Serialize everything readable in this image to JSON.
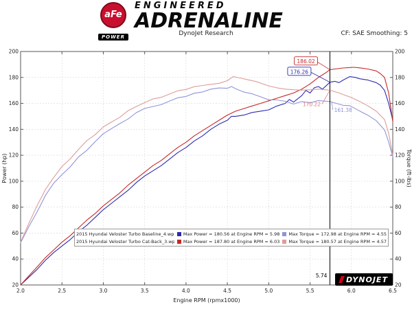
{
  "header": {
    "logo": {
      "circle_text": "aFe",
      "banner_text": "POWER"
    },
    "brand_top": "ENGINEERED",
    "brand_bottom": "ADRENALINE",
    "subtitle": "DynoJet Research",
    "smoothing": "CF: SAE Smoothing: 5"
  },
  "chart_data": {
    "type": "line",
    "xlabel": "Engine RPM (rpmx1000)",
    "ylabel_left": "Power (hp)",
    "ylabel_right": "Torque (ft-lbs)",
    "xlim": [
      2.0,
      6.5
    ],
    "ylim": [
      20,
      200
    ],
    "x_ticks": [
      2.0,
      2.5,
      3.0,
      3.5,
      4.0,
      4.5,
      5.0,
      5.5,
      6.0,
      6.5
    ],
    "y_ticks": [
      20,
      40,
      60,
      80,
      100,
      120,
      140,
      160,
      180,
      200
    ],
    "grid": true,
    "legend_position": "bottom-center",
    "cursor": {
      "x": 5.74,
      "label": "5.74"
    },
    "series": [
      {
        "name": "2015 Hyundai Veloster Turbo Baseline_4.wp8 Power (hp)",
        "color": "#2a2ab0",
        "max_label": "Max Power = 180.56 at Engine RPM = 5.98",
        "points": [
          [
            2.0,
            20
          ],
          [
            2.1,
            26
          ],
          [
            2.2,
            32
          ],
          [
            2.3,
            39
          ],
          [
            2.4,
            45
          ],
          [
            2.5,
            50
          ],
          [
            2.6,
            55
          ],
          [
            2.7,
            61
          ],
          [
            2.8,
            66
          ],
          [
            2.9,
            72
          ],
          [
            3.0,
            78
          ],
          [
            3.1,
            83
          ],
          [
            3.2,
            88
          ],
          [
            3.3,
            93
          ],
          [
            3.4,
            99
          ],
          [
            3.5,
            104
          ],
          [
            3.6,
            108
          ],
          [
            3.7,
            112
          ],
          [
            3.8,
            117
          ],
          [
            3.9,
            122
          ],
          [
            4.0,
            126
          ],
          [
            4.1,
            131
          ],
          [
            4.2,
            135
          ],
          [
            4.3,
            140
          ],
          [
            4.4,
            144
          ],
          [
            4.5,
            147
          ],
          [
            4.55,
            150
          ],
          [
            4.6,
            150
          ],
          [
            4.7,
            151
          ],
          [
            4.8,
            153
          ],
          [
            4.9,
            154
          ],
          [
            5.0,
            155
          ],
          [
            5.1,
            158
          ],
          [
            5.2,
            160
          ],
          [
            5.25,
            163
          ],
          [
            5.3,
            161
          ],
          [
            5.4,
            166
          ],
          [
            5.45,
            170
          ],
          [
            5.5,
            168
          ],
          [
            5.55,
            172
          ],
          [
            5.6,
            173
          ],
          [
            5.65,
            171
          ],
          [
            5.74,
            176.3
          ],
          [
            5.8,
            177
          ],
          [
            5.85,
            176
          ],
          [
            5.9,
            178
          ],
          [
            5.98,
            180.6
          ],
          [
            6.05,
            180
          ],
          [
            6.1,
            179
          ],
          [
            6.2,
            178
          ],
          [
            6.3,
            176
          ],
          [
            6.35,
            174
          ],
          [
            6.4,
            170
          ],
          [
            6.45,
            160
          ],
          [
            6.5,
            147
          ]
        ]
      },
      {
        "name": "2015 Hyundai Veloster Turbo Cat-Back_3.wp8 Power (hp)",
        "color": "#c42827",
        "max_label": "Max Power = 187.80 at Engine RPM = 6.03",
        "points": [
          [
            2.0,
            20
          ],
          [
            2.1,
            27
          ],
          [
            2.2,
            34
          ],
          [
            2.3,
            41
          ],
          [
            2.4,
            47
          ],
          [
            2.5,
            53
          ],
          [
            2.6,
            58
          ],
          [
            2.7,
            64
          ],
          [
            2.8,
            70
          ],
          [
            2.9,
            75
          ],
          [
            3.0,
            81
          ],
          [
            3.1,
            86
          ],
          [
            3.2,
            91
          ],
          [
            3.3,
            97
          ],
          [
            3.4,
            102
          ],
          [
            3.5,
            107
          ],
          [
            3.6,
            112
          ],
          [
            3.7,
            116
          ],
          [
            3.8,
            121
          ],
          [
            3.9,
            126
          ],
          [
            4.0,
            130
          ],
          [
            4.1,
            135
          ],
          [
            4.2,
            139
          ],
          [
            4.3,
            143
          ],
          [
            4.4,
            147
          ],
          [
            4.5,
            151
          ],
          [
            4.6,
            154
          ],
          [
            4.7,
            156
          ],
          [
            4.8,
            158
          ],
          [
            4.9,
            160
          ],
          [
            5.0,
            162
          ],
          [
            5.1,
            164
          ],
          [
            5.2,
            166
          ],
          [
            5.3,
            168
          ],
          [
            5.4,
            171
          ],
          [
            5.5,
            175
          ],
          [
            5.6,
            180
          ],
          [
            5.65,
            182
          ],
          [
            5.7,
            184
          ],
          [
            5.74,
            186
          ],
          [
            5.8,
            186.5
          ],
          [
            5.9,
            187.3
          ],
          [
            6.03,
            187.8
          ],
          [
            6.1,
            187.4
          ],
          [
            6.2,
            186.5
          ],
          [
            6.3,
            185
          ],
          [
            6.35,
            183
          ],
          [
            6.4,
            180
          ],
          [
            6.45,
            168
          ],
          [
            6.5,
            146
          ]
        ]
      },
      {
        "name": "2015 Hyundai Veloster Turbo Baseline_4.wp8 Torque (ft-lbs)",
        "color": "#8f93d8",
        "max_label": "Max Torque = 172.98 at Engine RPM = 4.55",
        "points": [
          [
            2.0,
            52.5
          ],
          [
            2.1,
            65
          ],
          [
            2.2,
            76.4
          ],
          [
            2.3,
            89
          ],
          [
            2.4,
            98.5
          ],
          [
            2.5,
            105
          ],
          [
            2.6,
            111.1
          ],
          [
            2.7,
            118.7
          ],
          [
            2.8,
            123.8
          ],
          [
            2.9,
            130.4
          ],
          [
            3.0,
            136.6
          ],
          [
            3.1,
            140.6
          ],
          [
            3.2,
            144.4
          ],
          [
            3.3,
            148
          ],
          [
            3.4,
            152.9
          ],
          [
            3.5,
            156.1
          ],
          [
            3.6,
            157.6
          ],
          [
            3.7,
            159
          ],
          [
            3.8,
            161.7
          ],
          [
            3.9,
            164.3
          ],
          [
            4.0,
            165.4
          ],
          [
            4.1,
            167.8
          ],
          [
            4.2,
            168.8
          ],
          [
            4.3,
            171
          ],
          [
            4.4,
            171.9
          ],
          [
            4.5,
            171.6
          ],
          [
            4.55,
            173
          ],
          [
            4.6,
            171.3
          ],
          [
            4.7,
            168.7
          ],
          [
            4.8,
            167.4
          ],
          [
            4.9,
            165.1
          ],
          [
            5.0,
            162.8
          ],
          [
            5.1,
            162.7
          ],
          [
            5.2,
            161.6
          ],
          [
            5.3,
            159.5
          ],
          [
            5.4,
            161.4
          ],
          [
            5.5,
            160.4
          ],
          [
            5.6,
            162.2
          ],
          [
            5.74,
            161.4
          ],
          [
            5.9,
            158.5
          ],
          [
            5.98,
            158.3
          ],
          [
            6.1,
            154.1
          ],
          [
            6.2,
            150.8
          ],
          [
            6.3,
            146.7
          ],
          [
            6.4,
            139.5
          ],
          [
            6.45,
            130.3
          ],
          [
            6.5,
            118.7
          ]
        ]
      },
      {
        "name": "2015 Hyundai Veloster Turbo Cat-Back_3.wp8 Torque (ft-lbs)",
        "color": "#de9b9b",
        "max_label": "Max Torque = 180.57 at Engine RPM = 4.57",
        "points": [
          [
            2.0,
            53
          ],
          [
            2.1,
            67.5
          ],
          [
            2.2,
            81.2
          ],
          [
            2.3,
            93.6
          ],
          [
            2.4,
            102.9
          ],
          [
            2.5,
            111.3
          ],
          [
            2.6,
            117.2
          ],
          [
            2.7,
            124.5
          ],
          [
            2.8,
            131.3
          ],
          [
            2.9,
            135.8
          ],
          [
            3.0,
            141.8
          ],
          [
            3.1,
            145.7
          ],
          [
            3.2,
            149.3
          ],
          [
            3.3,
            154.4
          ],
          [
            3.4,
            157.6
          ],
          [
            3.5,
            160.6
          ],
          [
            3.6,
            163.4
          ],
          [
            3.7,
            164.7
          ],
          [
            3.8,
            167.2
          ],
          [
            3.9,
            169.7
          ],
          [
            4.0,
            170.7
          ],
          [
            4.1,
            172.9
          ],
          [
            4.2,
            173.8
          ],
          [
            4.3,
            174.7
          ],
          [
            4.4,
            175.5
          ],
          [
            4.5,
            177.5
          ],
          [
            4.57,
            180.6
          ],
          [
            4.65,
            179.6
          ],
          [
            4.75,
            178.2
          ],
          [
            4.85,
            176.8
          ],
          [
            5.0,
            173.5
          ],
          [
            5.1,
            172
          ],
          [
            5.2,
            171
          ],
          [
            5.3,
            170.5
          ],
          [
            5.4,
            170.2
          ],
          [
            5.5,
            170.5
          ],
          [
            5.6,
            171
          ],
          [
            5.74,
            170.2
          ],
          [
            5.85,
            168
          ],
          [
            6.0,
            164.5
          ],
          [
            6.1,
            161.5
          ],
          [
            6.2,
            158
          ],
          [
            6.3,
            154
          ],
          [
            6.4,
            147.5
          ],
          [
            6.45,
            137
          ],
          [
            6.5,
            120
          ]
        ]
      }
    ],
    "annotations": [
      {
        "text": "186.02",
        "color": "#c42827",
        "box": true,
        "label_x": 5.45,
        "label_y": 192.5,
        "target_x": 5.74,
        "target_y": 186.0
      },
      {
        "text": "176.26",
        "color": "#2a2ab0",
        "box": true,
        "label_x": 5.37,
        "label_y": 184.5,
        "target_x": 5.74,
        "target_y": 176.3
      },
      {
        "text": "170.22",
        "color": "#d97e7e",
        "box": false,
        "label_x": 5.52,
        "label_y": 159.5,
        "target_x": 5.74,
        "target_y": 170.2
      },
      {
        "text": "161.38",
        "color": "#8f93d8",
        "box": false,
        "label_x": 5.9,
        "label_y": 155.0,
        "target_x": 5.76,
        "target_y": 161.4
      }
    ]
  },
  "legend": {
    "rows": [
      {
        "name": "2015 Hyundai Veloster Turbo Baseline_4.wp8",
        "power_color": "#2a2ab0",
        "power_text": "Max Power = 180.56 at Engine RPM = 5.98",
        "torque_color": "#8f93d8",
        "torque_text": "Max Torque = 172.98 at Engine RPM = 4.55"
      },
      {
        "name": "2015 Hyundai Veloster Turbo Cat-Back_3.wp8",
        "power_color": "#c42827",
        "power_text": "Max Power = 187.80 at Engine RPM = 6.03",
        "torque_color": "#de9b9b",
        "torque_text": "Max Torque = 180.57 at Engine RPM = 4.57"
      }
    ]
  },
  "footer_logo": {
    "text": "DYNOJET"
  }
}
